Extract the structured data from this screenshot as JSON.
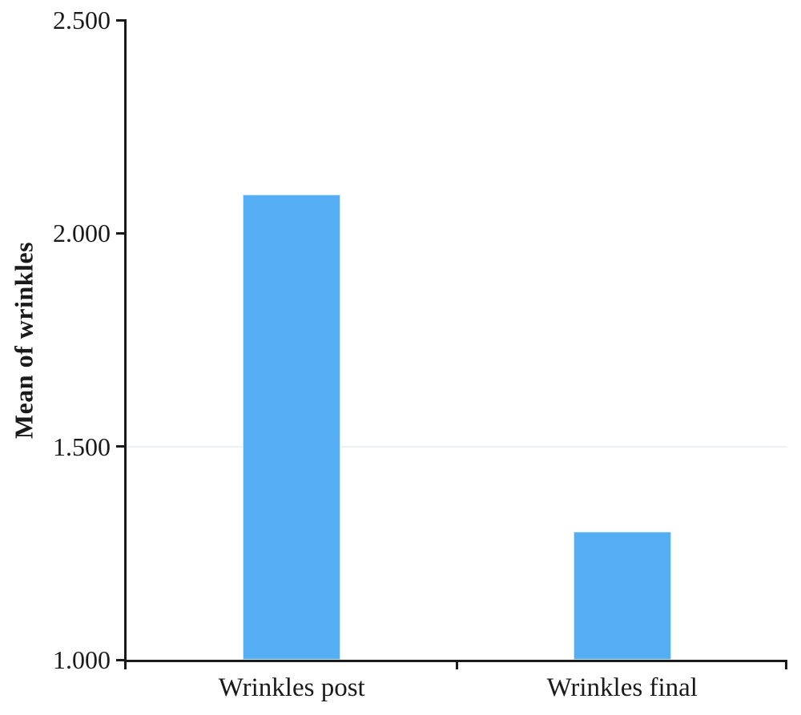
{
  "figure": {
    "background": "#ffffff"
  },
  "chart_data": {
    "type": "bar",
    "title": "",
    "xlabel": "",
    "ylabel": "Mean of wrinkles",
    "categories": [
      "Wrinkles post",
      "Wrinkles final"
    ],
    "values": [
      2.09,
      1.3
    ],
    "ylim": [
      1.0,
      2.5
    ],
    "yticks": [
      1.0,
      1.5,
      2.0,
      2.5
    ],
    "ytick_labels": [
      "1.000",
      "1.500",
      "2.000",
      "2.500"
    ],
    "gridlines_at": [
      1.5
    ],
    "legend": null,
    "grid": "single faint horizontal line at 1.500",
    "colors": {
      "bar_fill": "#56AEF5",
      "bar_edge": "#c5e9fb",
      "axis": "#1a1a1a",
      "text": "#1a1a1a",
      "gridline": "#eef2f8"
    }
  }
}
